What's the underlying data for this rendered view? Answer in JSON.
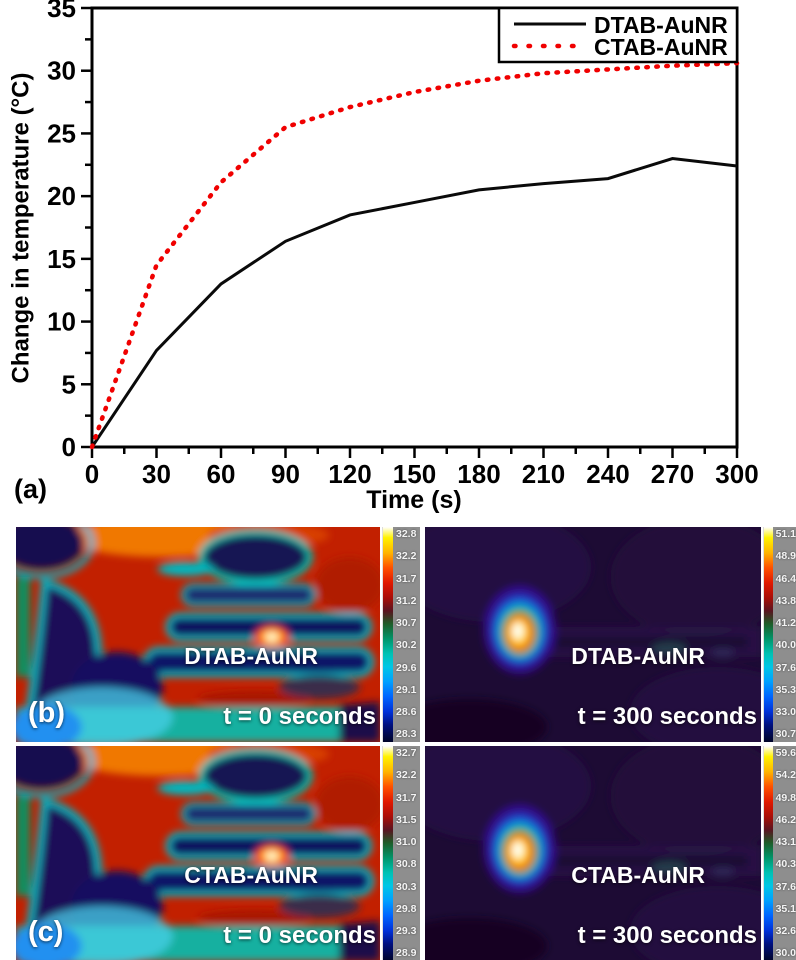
{
  "chart_data": {
    "type": "line",
    "title": "",
    "panel_label": "(a)",
    "xlabel": "Time (s)",
    "ylabel": "Change in temperature (°C)",
    "xlim": [
      0,
      300
    ],
    "ylim": [
      0,
      35
    ],
    "x_ticks": [
      0,
      30,
      60,
      90,
      120,
      150,
      180,
      210,
      240,
      270,
      300
    ],
    "y_ticks": [
      0,
      5,
      10,
      15,
      20,
      25,
      30,
      35
    ],
    "x_minor_step": 15,
    "y_minor_step": 2.5,
    "grid": false,
    "legend_position": "top-right",
    "x": [
      0,
      30,
      60,
      90,
      120,
      150,
      180,
      210,
      240,
      270,
      300
    ],
    "series": [
      {
        "name": "DTAB-AuNR",
        "color": "#0a0a0a",
        "line_style": "solid",
        "values": [
          0,
          7.7,
          13.0,
          16.4,
          18.5,
          19.5,
          20.5,
          21.0,
          21.4,
          23.0,
          22.4
        ]
      },
      {
        "name": "CTAB-AuNR",
        "color": "#f00000",
        "line_style": "dotted",
        "values": [
          0,
          14.5,
          21.1,
          25.5,
          27.1,
          28.3,
          29.2,
          29.8,
          30.1,
          30.4,
          30.6
        ]
      }
    ]
  },
  "thermal": {
    "panels": [
      {
        "panel_label": "(b)",
        "sample": "DTAB-AuNR",
        "time": "t = 0 seconds",
        "colorbar_ticks": [
          "32.8",
          "32.2",
          "31.7",
          "31.2",
          "30.7",
          "30.2",
          "29.6",
          "29.1",
          "28.6",
          "28.3"
        ]
      },
      {
        "panel_label": "",
        "sample": "DTAB-AuNR",
        "time": "t = 300 seconds",
        "colorbar_ticks": [
          "51.1",
          "48.9",
          "46.4",
          "43.8",
          "41.2",
          "40.0",
          "37.6",
          "35.3",
          "33.0",
          "30.7"
        ]
      },
      {
        "panel_label": "(c)",
        "sample": "CTAB-AuNR",
        "time": "t = 0 seconds",
        "colorbar_ticks": [
          "32.7",
          "32.2",
          "31.7",
          "31.5",
          "31.0",
          "30.8",
          "30.3",
          "29.8",
          "29.3",
          "28.9"
        ]
      },
      {
        "panel_label": "",
        "sample": "CTAB-AuNR",
        "time": "t = 300 seconds",
        "colorbar_ticks": [
          "59.6",
          "54.2",
          "49.8",
          "46.2",
          "43.1",
          "40.3",
          "37.6",
          "35.1",
          "32.6",
          "30.0"
        ]
      }
    ]
  }
}
